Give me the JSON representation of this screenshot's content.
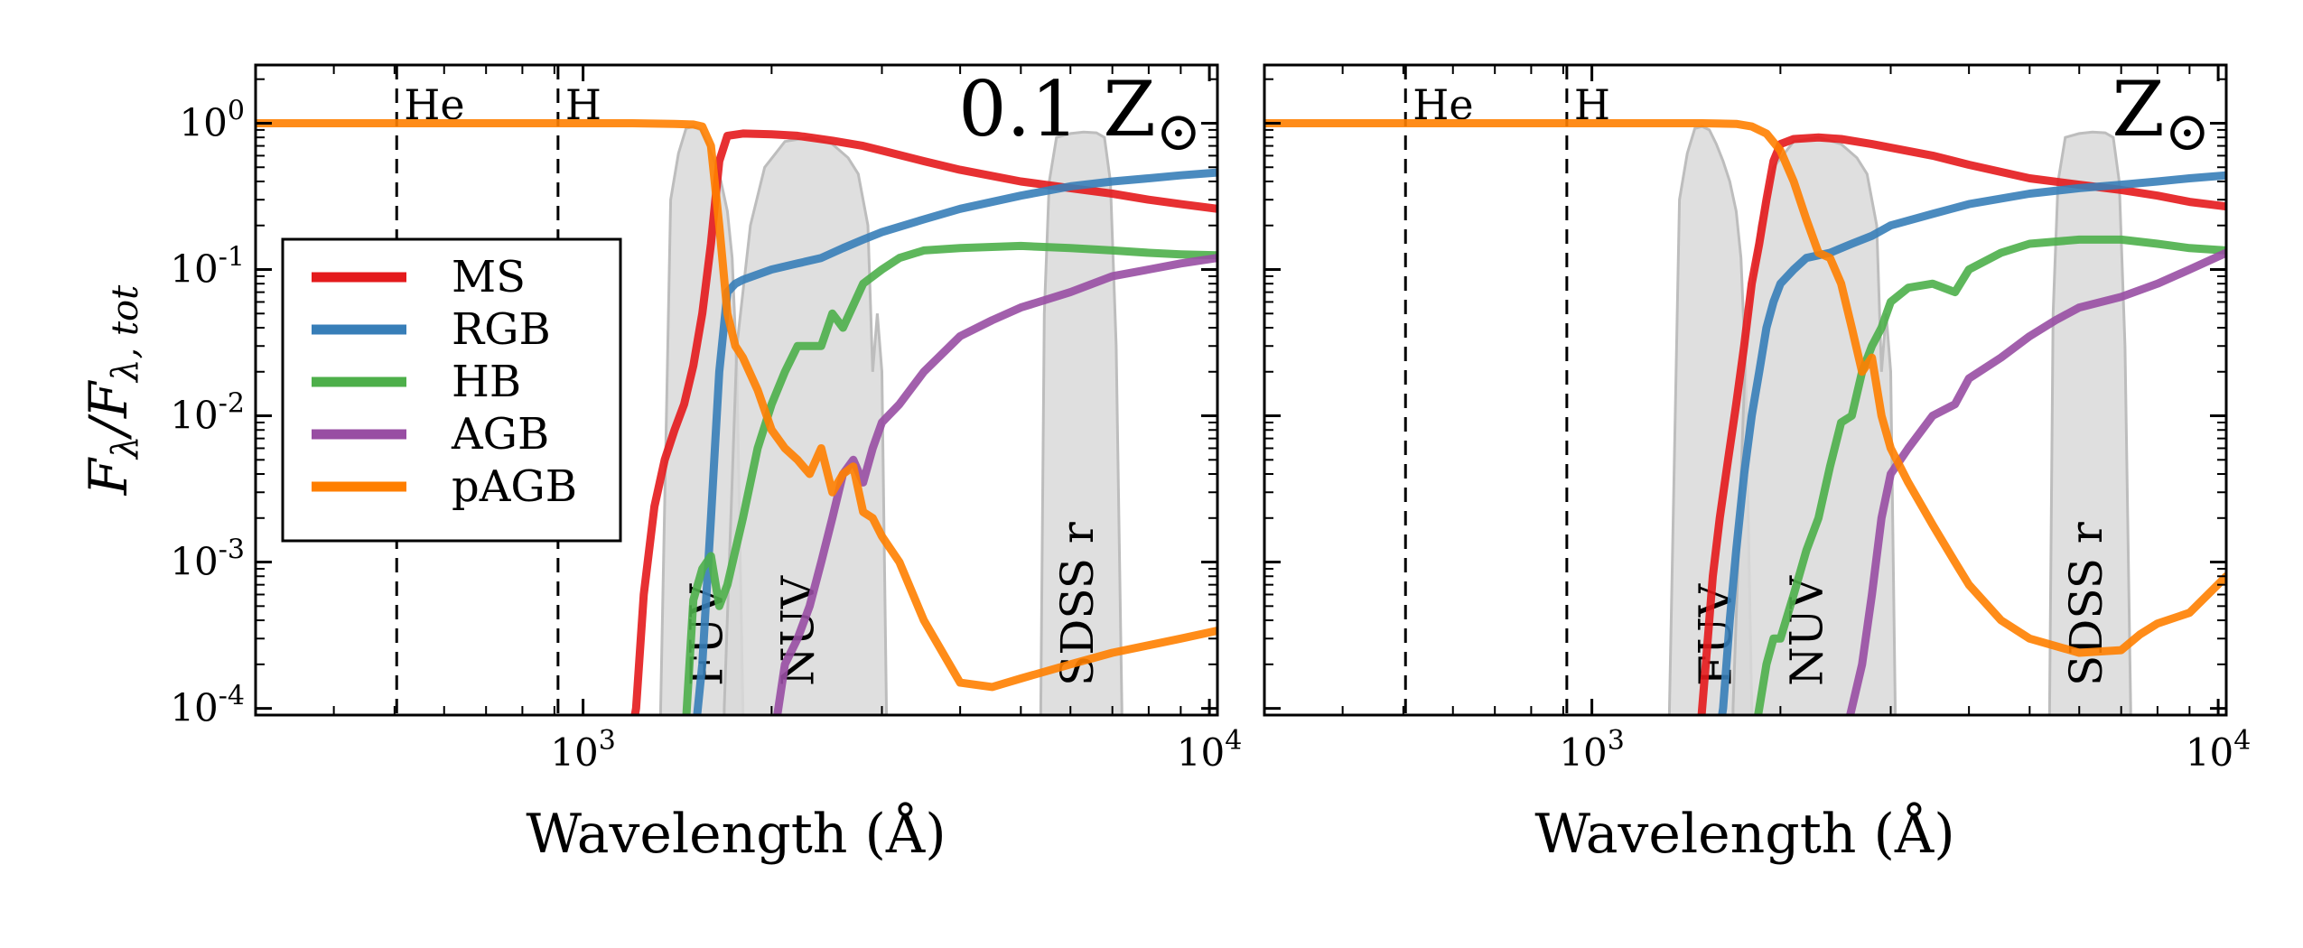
{
  "figure": {
    "ylabel_main": "F",
    "ylabel_sub_num": "λ",
    "ylabel_den": "F",
    "ylabel_sub_den": "λ, tot"
  },
  "chart_data": [
    {
      "type": "line",
      "panel": "left",
      "title": "0.1 Z☉",
      "title_text": "0.1 Z",
      "title_symbol": "⊙",
      "xlabel": "Wavelength (Å)",
      "ylabel": "Fλ/Fλ,tot",
      "xscale": "log",
      "yscale": "log",
      "xlim": [
        300,
        10300
      ],
      "ylim": [
        9e-05,
        2.5
      ],
      "xticks": [
        {
          "value": 1000,
          "base": "10",
          "exp": "3"
        },
        {
          "value": 10000,
          "base": "10",
          "exp": "4"
        }
      ],
      "yticks": [
        {
          "value": 1,
          "base": "10",
          "exp": "0"
        },
        {
          "value": 0.1,
          "base": "10",
          "exp": "-1"
        },
        {
          "value": 0.01,
          "base": "10",
          "exp": "-2"
        },
        {
          "value": 0.001,
          "base": "10",
          "exp": "-3"
        },
        {
          "value": 0.0001,
          "base": "10",
          "exp": "-4"
        }
      ],
      "vlines": [
        {
          "x": 504,
          "label": "He"
        },
        {
          "x": 912,
          "label": "H"
        }
      ],
      "filters": [
        {
          "name": "FUV",
          "x": [
            1330,
            1380,
            1420,
            1460,
            1500,
            1540,
            1580,
            1620,
            1660,
            1700,
            1730,
            1760,
            1800
          ],
          "y": [
            0.0001,
            0.3,
            0.62,
            0.92,
            0.95,
            0.9,
            0.72,
            0.55,
            0.4,
            0.25,
            0.12,
            0.02,
            0.0001
          ]
        },
        {
          "name": "NUV",
          "x": [
            1680,
            1760,
            1850,
            1950,
            2100,
            2300,
            2500,
            2650,
            2750,
            2850,
            2900,
            2950,
            3000,
            3050
          ],
          "y": [
            0.0001,
            0.03,
            0.2,
            0.5,
            0.75,
            0.8,
            0.72,
            0.58,
            0.45,
            0.2,
            0.02,
            0.05,
            0.02,
            0.0001
          ]
        },
        {
          "name": "SDSS r",
          "x": [
            5380,
            5450,
            5550,
            5700,
            6000,
            6300,
            6600,
            6800,
            6950,
            7100,
            7250
          ],
          "y": [
            0.0001,
            0.05,
            0.4,
            0.8,
            0.85,
            0.87,
            0.86,
            0.8,
            0.4,
            0.03,
            0.0001
          ]
        }
      ],
      "series": [
        {
          "name": "MS",
          "color": "#e41a1c",
          "x": [
            1180,
            1215,
            1250,
            1300,
            1350,
            1400,
            1450,
            1500,
            1550,
            1600,
            1650,
            1700,
            1800,
            2000,
            2200,
            2500,
            2800,
            3000,
            3500,
            4000,
            5000,
            6000,
            7000,
            8000,
            9000,
            10300
          ],
          "y": [
            5e-05,
            0.0001,
            0.0006,
            0.0024,
            0.005,
            0.008,
            0.012,
            0.022,
            0.05,
            0.15,
            0.55,
            0.82,
            0.85,
            0.84,
            0.82,
            0.76,
            0.7,
            0.65,
            0.55,
            0.48,
            0.4,
            0.36,
            0.33,
            0.3,
            0.28,
            0.26
          ]
        },
        {
          "name": "RGB",
          "color": "#377eb8",
          "x": [
            1500,
            1550,
            1600,
            1650,
            1700,
            1750,
            1800,
            2000,
            2200,
            2400,
            2600,
            2800,
            3000,
            3500,
            4000,
            5000,
            6000,
            7000,
            8000,
            9000,
            10300
          ],
          "y": [
            5e-05,
            0.0002,
            0.002,
            0.02,
            0.07,
            0.08,
            0.085,
            0.1,
            0.11,
            0.12,
            0.14,
            0.16,
            0.18,
            0.22,
            0.26,
            0.32,
            0.37,
            0.4,
            0.42,
            0.44,
            0.46
          ]
        },
        {
          "name": "HB",
          "color": "#4daf4a",
          "x": [
            1450,
            1500,
            1550,
            1600,
            1650,
            1700,
            1750,
            1800,
            1900,
            2000,
            2100,
            2200,
            2300,
            2400,
            2500,
            2600,
            2800,
            3000,
            3200,
            3500,
            4000,
            5000,
            6000,
            7000,
            8000,
            9000,
            10300
          ],
          "y": [
            5e-05,
            0.00055,
            0.0009,
            0.0011,
            0.0005,
            0.0007,
            0.0012,
            0.002,
            0.006,
            0.012,
            0.02,
            0.03,
            0.03,
            0.03,
            0.05,
            0.04,
            0.08,
            0.1,
            0.12,
            0.135,
            0.14,
            0.145,
            0.14,
            0.135,
            0.13,
            0.127,
            0.125
          ]
        },
        {
          "name": "AGB",
          "color": "#984ea3",
          "x": [
            2000,
            2050,
            2100,
            2200,
            2300,
            2400,
            2500,
            2600,
            2700,
            2800,
            2900,
            3000,
            3200,
            3500,
            4000,
            4500,
            5000,
            6000,
            7000,
            8000,
            9000,
            10300
          ],
          "y": [
            5e-05,
            0.0001,
            0.0002,
            0.0003,
            0.0005,
            0.001,
            0.002,
            0.004,
            0.005,
            0.0035,
            0.006,
            0.009,
            0.012,
            0.02,
            0.035,
            0.045,
            0.055,
            0.07,
            0.09,
            0.1,
            0.11,
            0.12
          ]
        },
        {
          "name": "pAGB",
          "color": "#ff7f00",
          "x": [
            300,
            500,
            800,
            1000,
            1200,
            1400,
            1500,
            1550,
            1600,
            1650,
            1700,
            1750,
            1800,
            1900,
            2000,
            2100,
            2200,
            2300,
            2400,
            2500,
            2600,
            2700,
            2800,
            2900,
            3000,
            3200,
            3500,
            4000,
            4500,
            5000,
            6000,
            7000,
            8000,
            9000,
            10300
          ],
          "y": [
            1,
            1,
            1,
            1,
            1,
            0.99,
            0.98,
            0.95,
            0.7,
            0.2,
            0.05,
            0.03,
            0.025,
            0.015,
            0.008,
            0.006,
            0.005,
            0.004,
            0.006,
            0.003,
            0.004,
            0.0045,
            0.0022,
            0.002,
            0.0015,
            0.001,
            0.0004,
            0.00015,
            0.00014,
            0.00016,
            0.0002,
            0.00024,
            0.00027,
            0.0003,
            0.00034
          ]
        }
      ]
    },
    {
      "type": "line",
      "panel": "right",
      "title": "Z☉",
      "title_text": "Z",
      "title_symbol": "⊙",
      "xlabel": "Wavelength (Å)",
      "xscale": "log",
      "yscale": "log",
      "xlim": [
        300,
        10300
      ],
      "ylim": [
        9e-05,
        2.5
      ],
      "xticks": [
        {
          "value": 1000,
          "base": "10",
          "exp": "3"
        },
        {
          "value": 10000,
          "base": "10",
          "exp": "4"
        }
      ],
      "vlines": [
        {
          "x": 504,
          "label": "He"
        },
        {
          "x": 912,
          "label": "H"
        }
      ],
      "filters": [
        {
          "name": "FUV",
          "x": [
            1330,
            1380,
            1420,
            1460,
            1500,
            1540,
            1580,
            1620,
            1660,
            1700,
            1730,
            1760,
            1800
          ],
          "y": [
            0.0001,
            0.3,
            0.62,
            0.92,
            0.95,
            0.9,
            0.72,
            0.55,
            0.4,
            0.25,
            0.12,
            0.02,
            0.0001
          ]
        },
        {
          "name": "NUV",
          "x": [
            1680,
            1760,
            1850,
            1950,
            2100,
            2300,
            2500,
            2650,
            2750,
            2850,
            2900,
            2950,
            3000,
            3050
          ],
          "y": [
            0.0001,
            0.03,
            0.2,
            0.5,
            0.75,
            0.8,
            0.72,
            0.58,
            0.45,
            0.2,
            0.02,
            0.05,
            0.02,
            0.0001
          ]
        },
        {
          "name": "SDSS r",
          "x": [
            5380,
            5450,
            5550,
            5700,
            6000,
            6300,
            6600,
            6800,
            6950,
            7100,
            7250
          ],
          "y": [
            0.0001,
            0.05,
            0.4,
            0.8,
            0.85,
            0.87,
            0.86,
            0.8,
            0.4,
            0.03,
            0.0001
          ]
        }
      ],
      "series": [
        {
          "name": "MS",
          "color": "#e41a1c",
          "x": [
            1480,
            1520,
            1560,
            1600,
            1650,
            1700,
            1750,
            1800,
            1850,
            1900,
            1950,
            2000,
            2100,
            2300,
            2500,
            2800,
            3000,
            3500,
            4000,
            5000,
            6000,
            7000,
            8000,
            9000,
            10300
          ],
          "y": [
            5e-05,
            0.0002,
            0.0008,
            0.002,
            0.005,
            0.012,
            0.03,
            0.08,
            0.15,
            0.3,
            0.55,
            0.72,
            0.78,
            0.8,
            0.78,
            0.72,
            0.68,
            0.6,
            0.52,
            0.42,
            0.38,
            0.35,
            0.32,
            0.29,
            0.27
          ]
        },
        {
          "name": "RGB",
          "color": "#377eb8",
          "x": [
            1580,
            1620,
            1660,
            1700,
            1750,
            1800,
            1850,
            1900,
            1950,
            2000,
            2100,
            2200,
            2400,
            2600,
            2800,
            3000,
            3500,
            4000,
            5000,
            6000,
            7000,
            8000,
            9000,
            10300
          ],
          "y": [
            5e-05,
            0.0001,
            0.0004,
            0.0012,
            0.004,
            0.01,
            0.02,
            0.04,
            0.06,
            0.08,
            0.1,
            0.12,
            0.13,
            0.15,
            0.17,
            0.2,
            0.24,
            0.28,
            0.33,
            0.36,
            0.38,
            0.4,
            0.42,
            0.44
          ]
        },
        {
          "name": "HB",
          "color": "#4daf4a",
          "x": [
            1800,
            1850,
            1900,
            1950,
            2000,
            2100,
            2200,
            2300,
            2400,
            2500,
            2600,
            2700,
            2800,
            2900,
            3000,
            3200,
            3500,
            3800,
            4000,
            4500,
            5000,
            6000,
            7000,
            8000,
            9000,
            10300
          ],
          "y": [
            5e-05,
            0.0001,
            0.0002,
            0.0003,
            0.0003,
            0.0006,
            0.0012,
            0.002,
            0.0045,
            0.009,
            0.01,
            0.02,
            0.03,
            0.04,
            0.06,
            0.075,
            0.08,
            0.07,
            0.1,
            0.13,
            0.15,
            0.16,
            0.16,
            0.15,
            0.14,
            0.135
          ]
        },
        {
          "name": "AGB",
          "color": "#984ea3",
          "x": [
            2500,
            2600,
            2700,
            2800,
            2900,
            3000,
            3200,
            3500,
            3800,
            4000,
            4500,
            5000,
            5500,
            6000,
            7000,
            8000,
            9000,
            10300
          ],
          "y": [
            5e-05,
            0.0001,
            0.0002,
            0.0006,
            0.002,
            0.004,
            0.006,
            0.01,
            0.012,
            0.018,
            0.025,
            0.035,
            0.045,
            0.055,
            0.065,
            0.08,
            0.1,
            0.13
          ]
        },
        {
          "name": "pAGB",
          "color": "#ff7f00",
          "x": [
            300,
            500,
            800,
            1000,
            1500,
            1700,
            1800,
            1900,
            2000,
            2100,
            2200,
            2300,
            2400,
            2500,
            2600,
            2700,
            2800,
            2900,
            3000,
            3200,
            3500,
            3800,
            4000,
            4500,
            5000,
            6000,
            7000,
            7500,
            8000,
            9000,
            10300
          ],
          "y": [
            1,
            1,
            1,
            1,
            1,
            0.99,
            0.95,
            0.85,
            0.65,
            0.4,
            0.22,
            0.13,
            0.12,
            0.08,
            0.04,
            0.02,
            0.025,
            0.01,
            0.006,
            0.0035,
            0.0018,
            0.001,
            0.0007,
            0.0004,
            0.0003,
            0.00024,
            0.00025,
            0.00032,
            0.00038,
            0.00045,
            0.0008
          ]
        }
      ]
    }
  ]
}
